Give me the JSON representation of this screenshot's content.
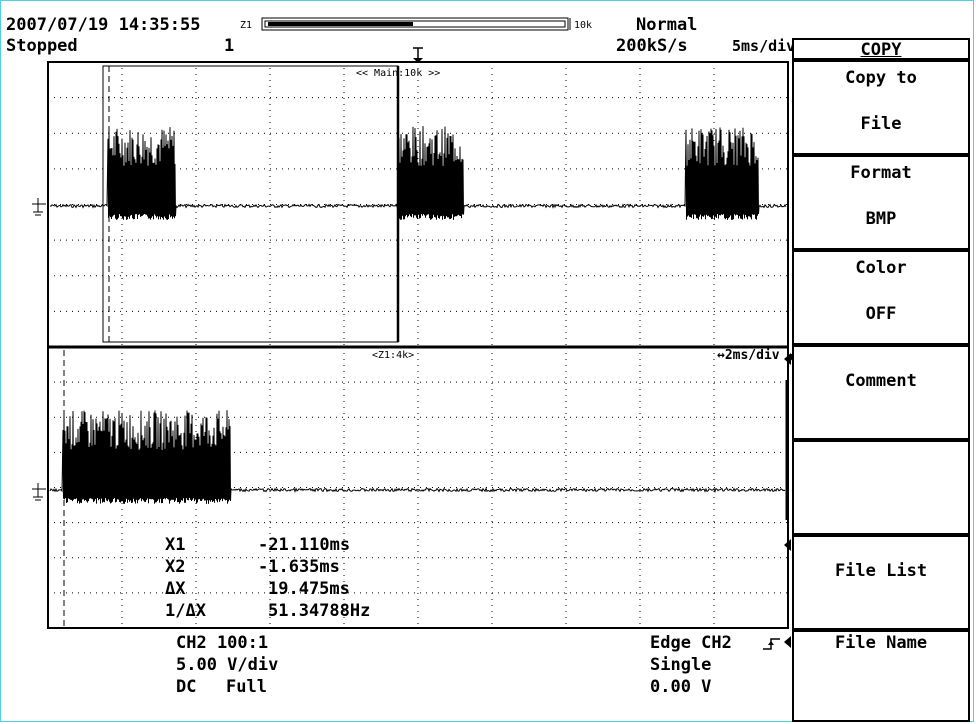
{
  "header": {
    "datetime": "2007/07/19 14:35:55",
    "zoom_tag": "Z1",
    "record_length": "10k",
    "trigger_mode": "Normal",
    "status": "Stopped",
    "acq_count": "1",
    "sample_rate": "200kS/s",
    "timebase": "5ms/div"
  },
  "main_window": {
    "label": "<< Main:10k >>"
  },
  "zoom_window": {
    "label": "<Z1:4k>",
    "timebase": "↔2ms/div"
  },
  "cursors": [
    {
      "name": "X1",
      "value": "-21.110ms"
    },
    {
      "name": "X2",
      "value": "-1.635ms"
    },
    {
      "name": "ΔX",
      "value": "19.475ms"
    },
    {
      "name": "1/ΔX",
      "value": "51.34788Hz"
    }
  ],
  "channel": {
    "line1": "CH2 100:1",
    "line2": "5.00 V/div",
    "coupling": "DC",
    "bandwidth": "Full"
  },
  "trigger": {
    "source": "Edge CH2",
    "mode": "Single",
    "level": "0.00 V"
  },
  "menu": {
    "title": "COPY",
    "items": [
      {
        "line1": "Copy to",
        "line2": "File"
      },
      {
        "line1": "Format",
        "line2": "BMP"
      },
      {
        "line1": "Color",
        "line2": "OFF"
      },
      {
        "line1": "Comment",
        "line2": ""
      },
      {
        "line1": "",
        "line2": ""
      },
      {
        "line1": "File List",
        "line2": ""
      },
      {
        "line1": "File Name",
        "line2": ""
      }
    ]
  },
  "colors": {
    "frame": "#4fd0e0",
    "trace": "#000000",
    "background": "#ffffff"
  }
}
